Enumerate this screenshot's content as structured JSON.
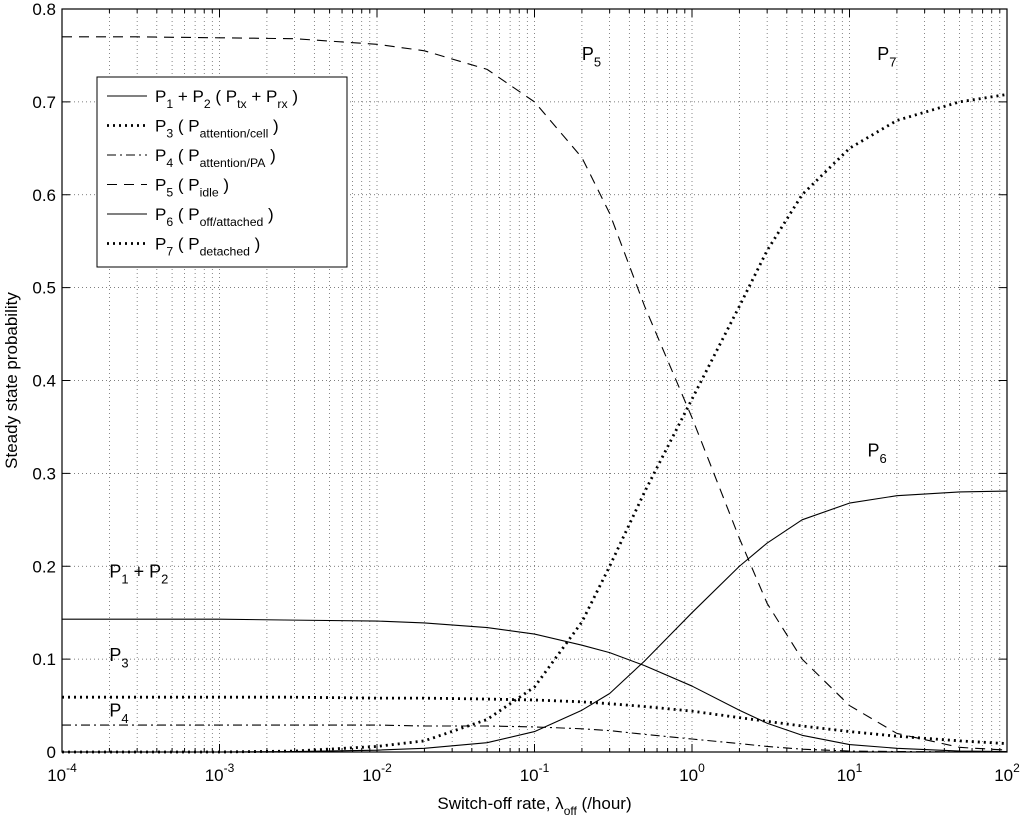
{
  "chart_data": {
    "type": "line",
    "xscale": "log",
    "xlim": [
      0.0001,
      100
    ],
    "ylim": [
      0,
      0.8
    ],
    "grid": true,
    "legend_position": "top-left",
    "ylabel": "Steady state probability",
    "xlabel": {
      "main": "Switch-off rate, λ",
      "sub": "off",
      "tail": " (/hour)"
    },
    "x_ticks": [
      {
        "base": "10",
        "exp": "-4",
        "value": 0.0001
      },
      {
        "base": "10",
        "exp": "-3",
        "value": 0.001
      },
      {
        "base": "10",
        "exp": "-2",
        "value": 0.01
      },
      {
        "base": "10",
        "exp": "-1",
        "value": 0.1
      },
      {
        "base": "10",
        "exp": "0",
        "value": 1
      },
      {
        "base": "10",
        "exp": "1",
        "value": 10
      },
      {
        "base": "10",
        "exp": "2",
        "value": 100
      }
    ],
    "y_ticks": [
      "0",
      "0.1",
      "0.2",
      "0.3",
      "0.4",
      "0.5",
      "0.6",
      "0.7",
      "0.8"
    ],
    "x": [
      0.0001,
      0.0003,
      0.001,
      0.003,
      0.01,
      0.02,
      0.05,
      0.1,
      0.2,
      0.3,
      0.5,
      1,
      2,
      3,
      5,
      10,
      20,
      50,
      100
    ],
    "series": [
      {
        "key": "p12",
        "style": "solid",
        "name": "P1 + P2 (Ptx + Prx)",
        "values": [
          0.143,
          0.143,
          0.143,
          0.142,
          0.141,
          0.139,
          0.134,
          0.127,
          0.115,
          0.107,
          0.093,
          0.071,
          0.045,
          0.031,
          0.018,
          0.008,
          0.004,
          0.001,
          0.0005
        ]
      },
      {
        "key": "p3",
        "style": "dotted",
        "name": "P3 (Pattention/cell)",
        "values": [
          0.059,
          0.059,
          0.059,
          0.059,
          0.058,
          0.058,
          0.057,
          0.056,
          0.054,
          0.052,
          0.049,
          0.044,
          0.037,
          0.033,
          0.028,
          0.022,
          0.017,
          0.012,
          0.009
        ]
      },
      {
        "key": "p4",
        "style": "dashdot",
        "name": "P4 (Pattention/PA)",
        "values": [
          0.029,
          0.029,
          0.029,
          0.029,
          0.029,
          0.028,
          0.028,
          0.027,
          0.025,
          0.023,
          0.019,
          0.014,
          0.009,
          0.006,
          0.003,
          0.001,
          0.0005,
          0.0002,
          0.0001
        ]
      },
      {
        "key": "p5",
        "style": "dashed",
        "name": "P5 (Pidle)",
        "values": [
          0.77,
          0.77,
          0.769,
          0.768,
          0.762,
          0.755,
          0.735,
          0.7,
          0.64,
          0.58,
          0.48,
          0.36,
          0.23,
          0.16,
          0.1,
          0.05,
          0.02,
          0.005,
          0.002
        ]
      },
      {
        "key": "p6",
        "style": "solid",
        "name": "P6 (Poff/attached)",
        "values": [
          0.0,
          0.0,
          0.0,
          0.0005,
          0.002,
          0.004,
          0.01,
          0.022,
          0.045,
          0.063,
          0.098,
          0.15,
          0.2,
          0.225,
          0.25,
          0.268,
          0.276,
          0.28,
          0.281
        ]
      },
      {
        "key": "p7",
        "style": "dotted",
        "name": "P7 (Pdetached)",
        "values": [
          0.0,
          0.0,
          0.0,
          0.001,
          0.006,
          0.012,
          0.035,
          0.07,
          0.14,
          0.2,
          0.28,
          0.38,
          0.48,
          0.54,
          0.6,
          0.65,
          0.68,
          0.7,
          0.708
        ]
      }
    ],
    "legend": [
      {
        "style": "solid",
        "parts": [
          [
            "P",
            ""
          ],
          [
            "1",
            "sub"
          ],
          [
            " + P",
            ""
          ],
          [
            "2",
            "sub"
          ],
          [
            " ( P",
            ""
          ],
          [
            "tx",
            "sub"
          ],
          [
            " + P",
            ""
          ],
          [
            "rx",
            "sub"
          ],
          [
            " )",
            ""
          ]
        ]
      },
      {
        "style": "dotted",
        "parts": [
          [
            "P",
            ""
          ],
          [
            "3",
            "sub"
          ],
          [
            " ( P",
            ""
          ],
          [
            "attention/cell",
            "sub"
          ],
          [
            " )",
            ""
          ]
        ]
      },
      {
        "style": "dashdot",
        "parts": [
          [
            "P",
            ""
          ],
          [
            "4",
            "sub"
          ],
          [
            " ( P",
            ""
          ],
          [
            "attention/PA",
            "sub"
          ],
          [
            " )",
            ""
          ]
        ]
      },
      {
        "style": "dashed",
        "parts": [
          [
            "P",
            ""
          ],
          [
            "5",
            "sub"
          ],
          [
            " ( P",
            ""
          ],
          [
            "idle",
            "sub"
          ],
          [
            " )",
            ""
          ]
        ]
      },
      {
        "style": "solid",
        "parts": [
          [
            "P",
            ""
          ],
          [
            "6",
            "sub"
          ],
          [
            " ( P",
            ""
          ],
          [
            "off/attached",
            "sub"
          ],
          [
            " )",
            ""
          ]
        ]
      },
      {
        "style": "dotted",
        "parts": [
          [
            "P",
            ""
          ],
          [
            "7",
            "sub"
          ],
          [
            " ( P",
            ""
          ],
          [
            "detached",
            "sub"
          ],
          [
            " )",
            ""
          ]
        ]
      }
    ],
    "annotations": [
      {
        "key": "p5",
        "x": 0.2,
        "y": 0.745,
        "parts": [
          [
            "P",
            ""
          ],
          [
            "5",
            "sub"
          ]
        ]
      },
      {
        "key": "p7",
        "x": 15,
        "y": 0.745,
        "parts": [
          [
            "P",
            ""
          ],
          [
            "7",
            "sub"
          ]
        ]
      },
      {
        "key": "p6",
        "x": 13,
        "y": 0.318,
        "parts": [
          [
            "P",
            ""
          ],
          [
            "6",
            "sub"
          ]
        ]
      },
      {
        "key": "p12",
        "x": 0.0002,
        "y": 0.188,
        "parts": [
          [
            "P",
            ""
          ],
          [
            "1",
            "sub"
          ],
          [
            " + P",
            ""
          ],
          [
            "2",
            "sub"
          ]
        ]
      },
      {
        "key": "p3",
        "x": 0.0002,
        "y": 0.098,
        "parts": [
          [
            "P",
            ""
          ],
          [
            "3",
            "sub"
          ]
        ]
      },
      {
        "key": "p4",
        "x": 0.0002,
        "y": 0.038,
        "parts": [
          [
            "P",
            ""
          ],
          [
            "4",
            "sub"
          ]
        ]
      }
    ]
  }
}
